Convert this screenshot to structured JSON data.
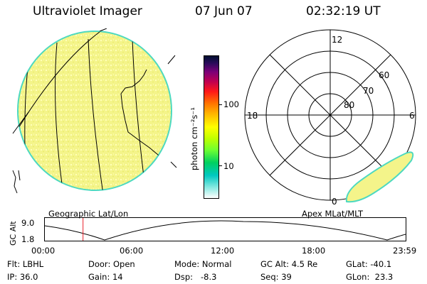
{
  "header": {
    "instrument": "Ultraviolet Imager",
    "date": "07 Jun 07",
    "time": "02:32:19 UT"
  },
  "colorbar": {
    "unit_label": "photon cm⁻²s⁻¹",
    "tick_100": "100",
    "tick_10": "10"
  },
  "left_panel": {
    "caption": "Geographic Lat/Lon"
  },
  "polar": {
    "caption": "Apex MLat/MLT",
    "mlt_labels": {
      "top": "12",
      "left": "18",
      "right": "6",
      "bottom": "0"
    },
    "lat_labels": [
      "60",
      "70",
      "80"
    ]
  },
  "altitude_plot": {
    "ylabel": "GC Alt",
    "ymax": "9.0",
    "ymin": "1.8",
    "x_ticks": [
      "00:00",
      "06:00",
      "12:00",
      "18:00",
      "23:59"
    ],
    "marker_hour": 2.54
  },
  "info": {
    "flt": "Flt: LBHL",
    "door": "Door: Open",
    "mode": "Mode: Normal",
    "gcalt": "GC Alt: 4.5 Re",
    "glat": "GLat: -40.1",
    "ip": "IP: 36.0",
    "gain": "Gain: 14",
    "dsp": "Dsp:   -8.3",
    "seq": "Seq: 39",
    "glon": "GLon:  23.3"
  },
  "colors": {
    "disk": "#f4f48a",
    "disk_edge": "#4dd9c0",
    "marker": "#e8202a"
  }
}
